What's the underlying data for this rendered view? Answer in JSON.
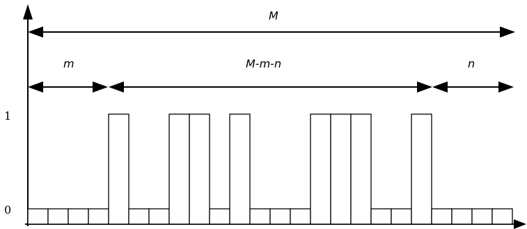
{
  "labels": {
    "total": "M",
    "left": "m",
    "middle": "M-m-n",
    "right": "n"
  },
  "y_ticks": {
    "one": "1",
    "zero": "0"
  },
  "sequence": [
    0,
    0,
    0,
    0,
    1,
    0,
    0,
    1,
    1,
    0,
    1,
    0,
    0,
    0,
    1,
    1,
    1,
    0,
    0,
    1,
    0,
    0,
    0,
    0
  ],
  "segments": {
    "m_cells": 4,
    "n_cells": 4
  }
}
